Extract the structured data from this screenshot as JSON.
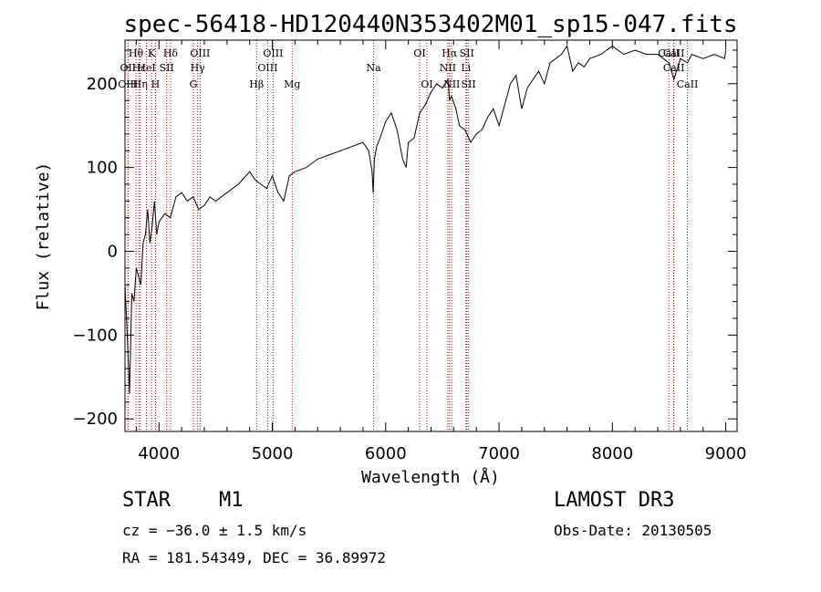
{
  "chart_data": {
    "type": "line",
    "title": "spec-56418-HD120440N353402M01_sp15-047.fits",
    "xlabel": "Wavelength (Å)",
    "ylabel": "Flux (relative)",
    "xlim": [
      3700,
      9100
    ],
    "ylim": [
      -215,
      252
    ],
    "xticks": [
      4000,
      5000,
      6000,
      7000,
      8000,
      9000
    ],
    "yticks": [
      -200,
      -100,
      0,
      100,
      200
    ],
    "grid": false,
    "series": [
      {
        "name": "flux",
        "x": [
          3700,
          3720,
          3740,
          3760,
          3780,
          3800,
          3820,
          3840,
          3860,
          3880,
          3900,
          3920,
          3940,
          3960,
          3980,
          4000,
          4050,
          4100,
          4150,
          4200,
          4250,
          4300,
          4350,
          4400,
          4450,
          4500,
          4600,
          4700,
          4800,
          4850,
          4900,
          4950,
          5000,
          5050,
          5100,
          5150,
          5200,
          5300,
          5400,
          5500,
          5600,
          5700,
          5800,
          5850,
          5880,
          5890,
          5900,
          5920,
          5950,
          6000,
          6050,
          6100,
          6150,
          6180,
          6200,
          6250,
          6300,
          6350,
          6400,
          6450,
          6500,
          6550,
          6563,
          6580,
          6620,
          6650,
          6700,
          6750,
          6800,
          6850,
          6900,
          6950,
          7000,
          7050,
          7100,
          7150,
          7200,
          7250,
          7300,
          7350,
          7400,
          7450,
          7500,
          7550,
          7600,
          7650,
          7700,
          7750,
          7800,
          7900,
          8000,
          8050,
          8100,
          8200,
          8300,
          8400,
          8500,
          8542,
          8600,
          8662,
          8700,
          8800,
          8900,
          8990,
          9000
        ],
        "values": [
          -40,
          -100,
          -170,
          -50,
          -60,
          -20,
          -30,
          -40,
          10,
          20,
          50,
          10,
          30,
          60,
          20,
          35,
          45,
          40,
          65,
          70,
          60,
          65,
          50,
          55,
          65,
          60,
          70,
          80,
          95,
          85,
          80,
          75,
          90,
          70,
          60,
          90,
          95,
          100,
          110,
          115,
          120,
          125,
          130,
          120,
          95,
          70,
          110,
          125,
          135,
          155,
          165,
          145,
          110,
          100,
          130,
          135,
          165,
          175,
          190,
          200,
          195,
          205,
          180,
          185,
          170,
          150,
          145,
          130,
          140,
          145,
          160,
          170,
          150,
          175,
          200,
          210,
          170,
          195,
          205,
          215,
          200,
          225,
          230,
          235,
          245,
          215,
          225,
          220,
          230,
          235,
          245,
          240,
          235,
          240,
          235,
          235,
          225,
          205,
          230,
          225,
          235,
          230,
          235,
          230,
          240
        ]
      }
    ],
    "line_markers": [
      {
        "name": "Hθ",
        "x": 3797,
        "row": 1
      },
      {
        "name": "OII",
        "x": 3727,
        "row": 2
      },
      {
        "name": "OIII",
        "x": 3727,
        "row": 3
      },
      {
        "name": "Hε",
        "x": 3823,
        "row": 2
      },
      {
        "name": "Hη",
        "x": 3835,
        "row": 3
      },
      {
        "name": "K",
        "x": 3934,
        "row": 1
      },
      {
        "name": "HeI",
        "x": 3889,
        "row": 2
      },
      {
        "name": "H",
        "x": 3969,
        "row": 3
      },
      {
        "name": "Hδ",
        "x": 4102,
        "row": 1
      },
      {
        "name": "SII",
        "x": 4068,
        "row": 2
      },
      {
        "name": "OIII",
        "x": 4363,
        "row": 1
      },
      {
        "name": "Hγ",
        "x": 4341,
        "row": 2
      },
      {
        "name": "G",
        "x": 4304,
        "row": 3
      },
      {
        "name": "Hβ",
        "x": 4861,
        "row": 3
      },
      {
        "name": "OIII",
        "x": 4959,
        "row": 2
      },
      {
        "name": "OIII",
        "x": 5007,
        "row": 1
      },
      {
        "name": "Mg",
        "x": 5175,
        "row": 3
      },
      {
        "name": "Na",
        "x": 5894,
        "row": 2
      },
      {
        "name": "OI",
        "x": 6300,
        "row": 1
      },
      {
        "name": "OI",
        "x": 6364,
        "row": 3
      },
      {
        "name": "Hα",
        "x": 6563,
        "row": 1
      },
      {
        "name": "NII",
        "x": 6548,
        "row": 2
      },
      {
        "name": "NII",
        "x": 6583,
        "row": 3
      },
      {
        "name": "SII",
        "x": 6716,
        "row": 1
      },
      {
        "name": "Li",
        "x": 6708,
        "row": 2
      },
      {
        "name": "SII",
        "x": 6731,
        "row": 3
      },
      {
        "name": "CaII",
        "x": 8498,
        "row": 1
      },
      {
        "name": "CaII",
        "x": 8542,
        "row": 1
      },
      {
        "name": "CaII",
        "x": 8542,
        "row": 2
      },
      {
        "name": "CaII",
        "x": 8662,
        "row": 3
      }
    ],
    "colors": {
      "spectrum": "#000000",
      "marker": "#cc0000"
    }
  },
  "footer": {
    "object_type": "STAR",
    "object_class": "M1",
    "survey": "LAMOST DR3",
    "redshift": "cz = −36.0 ± 1.5 km/s",
    "obs_date": "Obs-Date: 20130505",
    "coords": "RA = 181.54349, DEC =  36.89972"
  }
}
